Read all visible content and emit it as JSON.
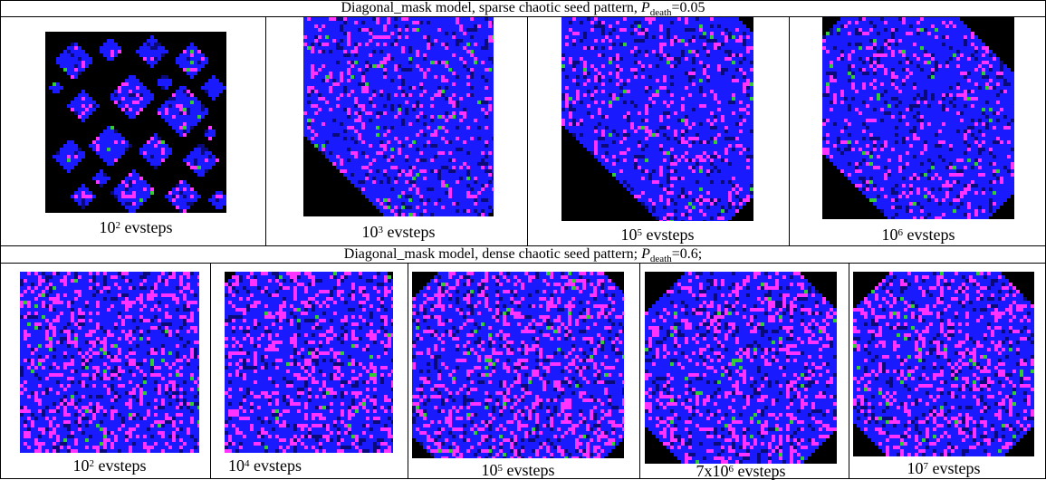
{
  "figure": {
    "row1": {
      "title_prefix": "Diagonal_mask model, sparse chaotic seed pattern, ",
      "title_symbol": "P",
      "title_subscript": "death",
      "title_value": "=0.05",
      "panels": [
        {
          "caption_base": "10",
          "caption_exp": "2",
          "caption_unit": " evsteps"
        },
        {
          "caption_base": "10",
          "caption_exp": "3",
          "caption_unit": " evsteps"
        },
        {
          "caption_base": "10",
          "caption_exp": "5",
          "caption_unit": " evsteps"
        },
        {
          "caption_base": "10",
          "caption_exp": "6",
          "caption_unit": " evsteps"
        }
      ]
    },
    "row2": {
      "title_prefix": "Diagonal_mask model, dense chaotic seed pattern; ",
      "title_symbol": "P",
      "title_subscript": "death",
      "title_value": "=0.6;",
      "panels": [
        {
          "caption_base": "10",
          "caption_exp": "2",
          "caption_unit": " evsteps"
        },
        {
          "caption_base": "10",
          "caption_exp": "4",
          "caption_unit": " evsteps"
        },
        {
          "caption_base": "10",
          "caption_exp": "5",
          "caption_unit": " evsteps"
        },
        {
          "caption_base": "7x10",
          "caption_exp": "6",
          "caption_unit": " evsteps"
        },
        {
          "caption_base": "10",
          "caption_exp": "7",
          "caption_unit": " evsteps"
        }
      ]
    }
  },
  "colors": {
    "background": "#000000",
    "cell_blue": "#1a1aff",
    "cell_magenta": "#ff33ff",
    "cell_green": "#33cc33",
    "dark_blue": "#0a0a7a"
  }
}
